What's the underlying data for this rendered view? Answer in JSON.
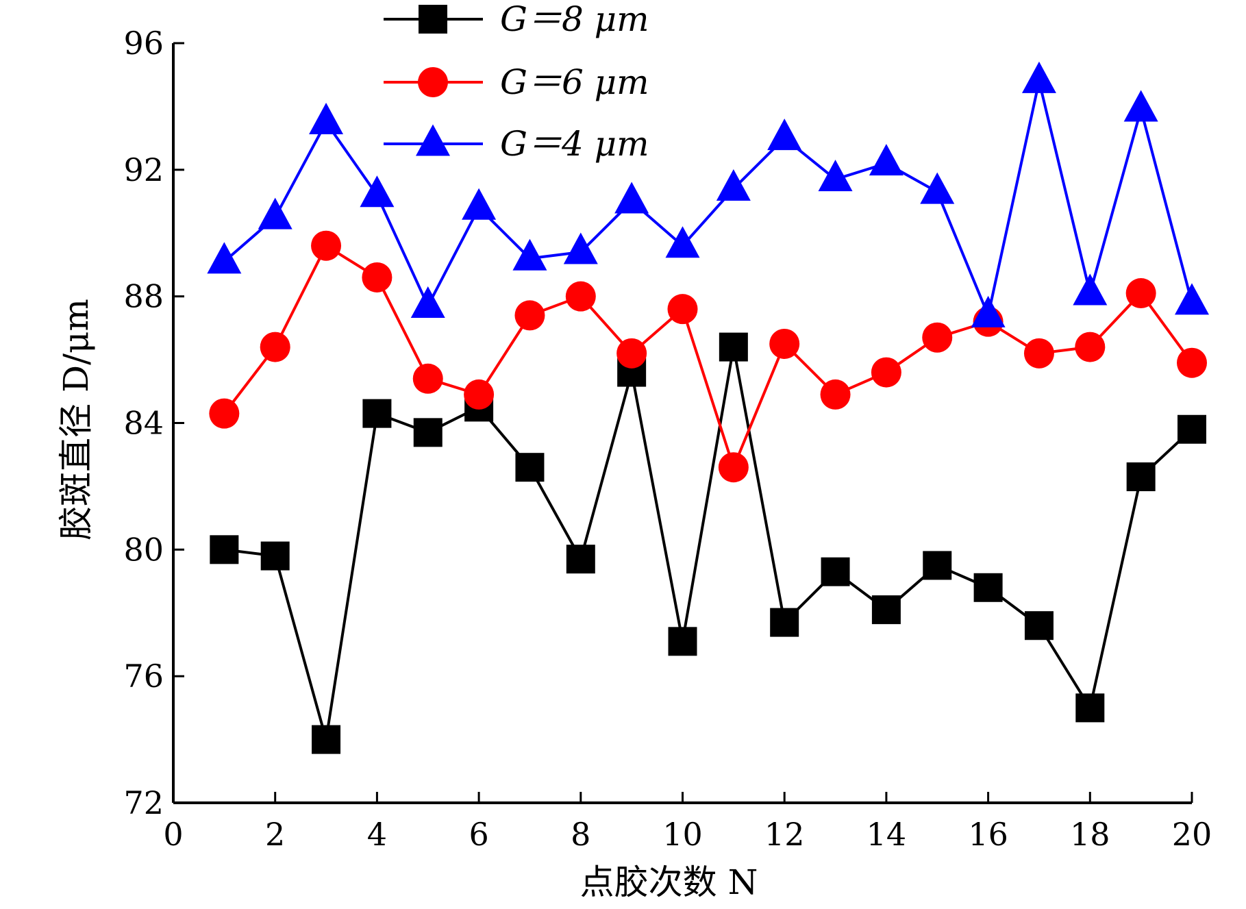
{
  "chart_data": {
    "type": "line",
    "xlabel": "点胶次数 N",
    "ylabel": "胶斑直径 D/μm",
    "xlim": [
      0,
      20
    ],
    "ylim": [
      72,
      96
    ],
    "xticks": [
      "0",
      "2",
      "4",
      "6",
      "8",
      "10",
      "12",
      "14",
      "16",
      "18",
      "20"
    ],
    "yticks": [
      "72",
      "76",
      "80",
      "84",
      "88",
      "92",
      "96"
    ],
    "grid": false,
    "legend_position": "top-center",
    "x": [
      1,
      2,
      3,
      4,
      5,
      6,
      7,
      8,
      9,
      10,
      11,
      12,
      13,
      14,
      15,
      16,
      17,
      18,
      19,
      20
    ],
    "series": [
      {
        "name": "G＝8  μm",
        "color": "#000000",
        "marker": "square",
        "values": [
          80.0,
          79.8,
          74.0,
          84.3,
          83.7,
          84.5,
          82.6,
          79.7,
          85.6,
          77.1,
          86.4,
          77.7,
          79.3,
          78.1,
          79.5,
          78.8,
          77.6,
          75.0,
          82.3,
          83.8
        ]
      },
      {
        "name": "G＝6  μm",
        "color": "#ff0000",
        "marker": "circle",
        "values": [
          84.3,
          86.4,
          89.6,
          88.6,
          85.4,
          84.9,
          87.4,
          88.0,
          86.2,
          87.6,
          82.6,
          86.5,
          84.9,
          85.6,
          86.7,
          87.2,
          86.2,
          86.4,
          88.1,
          85.9
        ]
      },
      {
        "name": "G＝4  μm",
        "color": "#0000ff",
        "marker": "triangle",
        "values": [
          89.1,
          90.5,
          93.5,
          91.2,
          87.7,
          90.8,
          89.2,
          89.4,
          91.0,
          89.6,
          91.4,
          93.0,
          91.7,
          92.2,
          91.3,
          87.4,
          94.8,
          88.1,
          93.9,
          87.8
        ]
      }
    ]
  }
}
